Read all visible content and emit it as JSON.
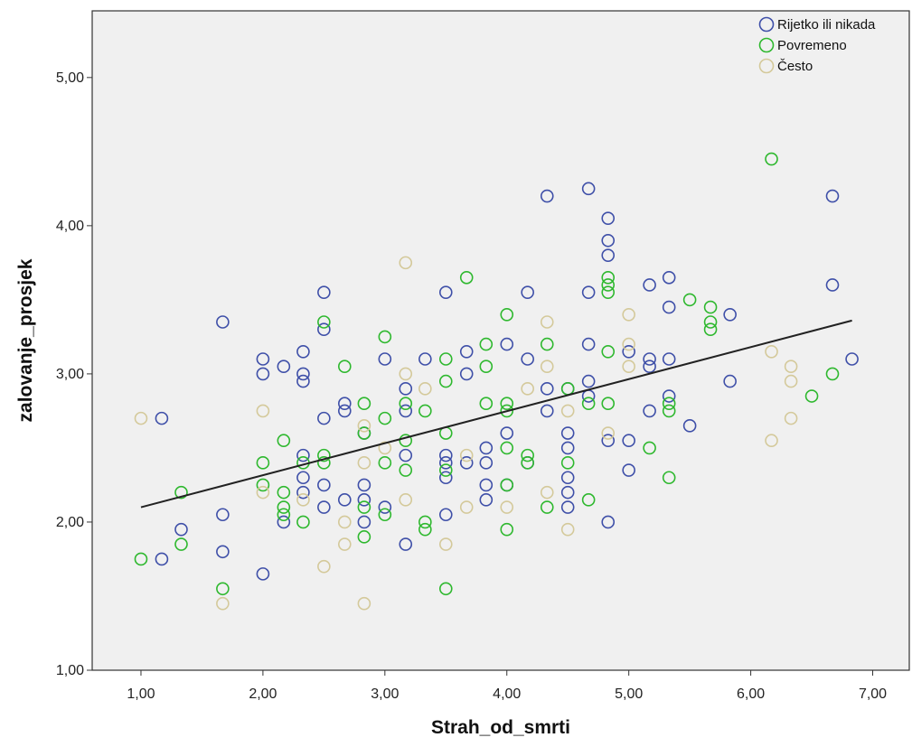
{
  "chart_data": {
    "type": "scatter",
    "title": "",
    "xlabel": "Strah_od_smrti",
    "ylabel": "zalovanje_prosjek",
    "xlim": [
      0.6,
      7.3
    ],
    "ylim": [
      1.0,
      5.45
    ],
    "x_ticks": [
      {
        "value": 1,
        "label": "1,00"
      },
      {
        "value": 2,
        "label": "2,00"
      },
      {
        "value": 3,
        "label": "3,00"
      },
      {
        "value": 4,
        "label": "4,00"
      },
      {
        "value": 5,
        "label": "5,00"
      },
      {
        "value": 6,
        "label": "6,00"
      },
      {
        "value": 7,
        "label": "7,00"
      }
    ],
    "y_ticks": [
      {
        "value": 1,
        "label": "1,00"
      },
      {
        "value": 2,
        "label": "2,00"
      },
      {
        "value": 3,
        "label": "3,00"
      },
      {
        "value": 4,
        "label": "4,00"
      },
      {
        "value": 5,
        "label": "5,00"
      }
    ],
    "grid": false,
    "legend_position": "top-right",
    "plot_background": "#f0f0f0",
    "series": [
      {
        "name": "Rijetko ili nikada",
        "color": "#3e4fa8",
        "points": [
          [
            1.17,
            2.7
          ],
          [
            1.17,
            1.75
          ],
          [
            1.33,
            1.95
          ],
          [
            1.67,
            3.35
          ],
          [
            1.67,
            2.05
          ],
          [
            1.67,
            1.8
          ],
          [
            2.0,
            3.1
          ],
          [
            2.0,
            3.0
          ],
          [
            2.0,
            1.65
          ],
          [
            2.17,
            3.05
          ],
          [
            2.17,
            2.0
          ],
          [
            2.33,
            3.15
          ],
          [
            2.33,
            3.0
          ],
          [
            2.33,
            2.95
          ],
          [
            2.33,
            2.45
          ],
          [
            2.33,
            2.3
          ],
          [
            2.33,
            2.2
          ],
          [
            2.5,
            3.55
          ],
          [
            2.5,
            3.3
          ],
          [
            2.5,
            2.7
          ],
          [
            2.5,
            2.25
          ],
          [
            2.5,
            2.1
          ],
          [
            2.67,
            2.8
          ],
          [
            2.67,
            2.75
          ],
          [
            2.67,
            2.15
          ],
          [
            2.83,
            2.6
          ],
          [
            2.83,
            2.25
          ],
          [
            2.83,
            2.15
          ],
          [
            2.83,
            2.0
          ],
          [
            3.0,
            3.1
          ],
          [
            3.0,
            2.1
          ],
          [
            3.17,
            2.9
          ],
          [
            3.17,
            2.75
          ],
          [
            3.17,
            2.45
          ],
          [
            3.17,
            1.85
          ],
          [
            3.33,
            3.1
          ],
          [
            3.5,
            3.55
          ],
          [
            3.5,
            2.45
          ],
          [
            3.5,
            2.4
          ],
          [
            3.5,
            2.3
          ],
          [
            3.5,
            2.05
          ],
          [
            3.67,
            3.15
          ],
          [
            3.67,
            3.0
          ],
          [
            3.67,
            2.4
          ],
          [
            3.83,
            2.5
          ],
          [
            3.83,
            2.4
          ],
          [
            3.83,
            2.25
          ],
          [
            3.83,
            2.15
          ],
          [
            4.0,
            3.2
          ],
          [
            4.0,
            2.6
          ],
          [
            4.0,
            2.25
          ],
          [
            4.17,
            3.55
          ],
          [
            4.17,
            3.1
          ],
          [
            4.17,
            2.4
          ],
          [
            4.33,
            4.2
          ],
          [
            4.33,
            2.9
          ],
          [
            4.33,
            2.75
          ],
          [
            4.5,
            2.9
          ],
          [
            4.5,
            2.6
          ],
          [
            4.5,
            2.5
          ],
          [
            4.5,
            2.3
          ],
          [
            4.5,
            2.2
          ],
          [
            4.5,
            2.1
          ],
          [
            4.67,
            4.25
          ],
          [
            4.67,
            3.55
          ],
          [
            4.67,
            3.2
          ],
          [
            4.67,
            2.95
          ],
          [
            4.67,
            2.85
          ],
          [
            4.83,
            4.05
          ],
          [
            4.83,
            3.9
          ],
          [
            4.83,
            3.8
          ],
          [
            4.83,
            2.55
          ],
          [
            4.83,
            2.0
          ],
          [
            5.0,
            3.15
          ],
          [
            5.0,
            2.55
          ],
          [
            5.0,
            2.35
          ],
          [
            5.17,
            3.6
          ],
          [
            5.17,
            3.1
          ],
          [
            5.17,
            3.05
          ],
          [
            5.17,
            2.75
          ],
          [
            5.33,
            3.65
          ],
          [
            5.33,
            3.45
          ],
          [
            5.33,
            3.1
          ],
          [
            5.33,
            2.85
          ],
          [
            5.5,
            2.65
          ],
          [
            5.83,
            3.4
          ],
          [
            5.83,
            2.95
          ],
          [
            6.67,
            4.2
          ],
          [
            6.67,
            3.6
          ],
          [
            6.83,
            3.1
          ]
        ]
      },
      {
        "name": "Povremeno",
        "color": "#2eb82e",
        "points": [
          [
            1.0,
            1.75
          ],
          [
            1.33,
            2.2
          ],
          [
            1.33,
            1.85
          ],
          [
            1.67,
            1.55
          ],
          [
            2.0,
            2.4
          ],
          [
            2.0,
            2.25
          ],
          [
            2.17,
            2.55
          ],
          [
            2.17,
            2.2
          ],
          [
            2.17,
            2.1
          ],
          [
            2.17,
            2.05
          ],
          [
            2.33,
            2.4
          ],
          [
            2.33,
            2.0
          ],
          [
            2.5,
            3.35
          ],
          [
            2.5,
            2.45
          ],
          [
            2.5,
            2.4
          ],
          [
            2.67,
            3.05
          ],
          [
            2.83,
            2.8
          ],
          [
            2.83,
            2.6
          ],
          [
            2.83,
            2.1
          ],
          [
            2.83,
            1.9
          ],
          [
            3.0,
            3.25
          ],
          [
            3.0,
            2.7
          ],
          [
            3.0,
            2.4
          ],
          [
            3.0,
            2.05
          ],
          [
            3.17,
            2.8
          ],
          [
            3.17,
            2.55
          ],
          [
            3.17,
            2.35
          ],
          [
            3.33,
            2.75
          ],
          [
            3.33,
            2.0
          ],
          [
            3.33,
            1.95
          ],
          [
            3.5,
            3.1
          ],
          [
            3.5,
            2.95
          ],
          [
            3.5,
            2.6
          ],
          [
            3.5,
            2.35
          ],
          [
            3.5,
            1.55
          ],
          [
            3.67,
            3.65
          ],
          [
            3.83,
            3.2
          ],
          [
            3.83,
            3.05
          ],
          [
            3.83,
            2.8
          ],
          [
            4.0,
            3.4
          ],
          [
            4.0,
            2.8
          ],
          [
            4.0,
            2.75
          ],
          [
            4.0,
            2.5
          ],
          [
            4.0,
            2.25
          ],
          [
            4.0,
            1.95
          ],
          [
            4.17,
            2.45
          ],
          [
            4.17,
            2.4
          ],
          [
            4.33,
            3.2
          ],
          [
            4.33,
            2.1
          ],
          [
            4.5,
            2.9
          ],
          [
            4.5,
            2.4
          ],
          [
            4.67,
            2.8
          ],
          [
            4.67,
            2.15
          ],
          [
            4.83,
            3.65
          ],
          [
            4.83,
            3.6
          ],
          [
            4.83,
            3.55
          ],
          [
            4.83,
            3.15
          ],
          [
            4.83,
            2.8
          ],
          [
            5.17,
            2.5
          ],
          [
            5.33,
            2.8
          ],
          [
            5.33,
            2.75
          ],
          [
            5.33,
            2.3
          ],
          [
            5.5,
            3.5
          ],
          [
            5.67,
            3.45
          ],
          [
            5.67,
            3.35
          ],
          [
            5.67,
            3.3
          ],
          [
            6.17,
            4.45
          ],
          [
            6.5,
            2.85
          ],
          [
            6.67,
            3.0
          ]
        ]
      },
      {
        "name": "Često",
        "color": "#d4c99a",
        "points": [
          [
            1.0,
            2.7
          ],
          [
            1.67,
            1.45
          ],
          [
            2.0,
            2.75
          ],
          [
            2.0,
            2.2
          ],
          [
            2.33,
            2.15
          ],
          [
            2.5,
            1.7
          ],
          [
            2.67,
            2.0
          ],
          [
            2.67,
            1.85
          ],
          [
            2.83,
            2.65
          ],
          [
            2.83,
            2.4
          ],
          [
            2.83,
            1.45
          ],
          [
            3.0,
            2.5
          ],
          [
            3.17,
            3.75
          ],
          [
            3.17,
            3.0
          ],
          [
            3.17,
            2.15
          ],
          [
            3.33,
            2.9
          ],
          [
            3.5,
            1.85
          ],
          [
            3.67,
            2.45
          ],
          [
            3.67,
            2.1
          ],
          [
            4.0,
            2.1
          ],
          [
            4.17,
            2.9
          ],
          [
            4.33,
            3.35
          ],
          [
            4.33,
            3.05
          ],
          [
            4.33,
            2.2
          ],
          [
            4.5,
            2.75
          ],
          [
            4.5,
            1.95
          ],
          [
            4.83,
            2.6
          ],
          [
            5.0,
            3.4
          ],
          [
            5.0,
            3.2
          ],
          [
            5.0,
            3.05
          ],
          [
            6.17,
            3.15
          ],
          [
            6.17,
            2.55
          ],
          [
            6.33,
            3.05
          ],
          [
            6.33,
            2.95
          ],
          [
            6.33,
            2.7
          ]
        ]
      }
    ],
    "fit_line": {
      "color": "#222222",
      "from": [
        1.0,
        2.1
      ],
      "to": [
        6.83,
        3.36
      ]
    }
  }
}
